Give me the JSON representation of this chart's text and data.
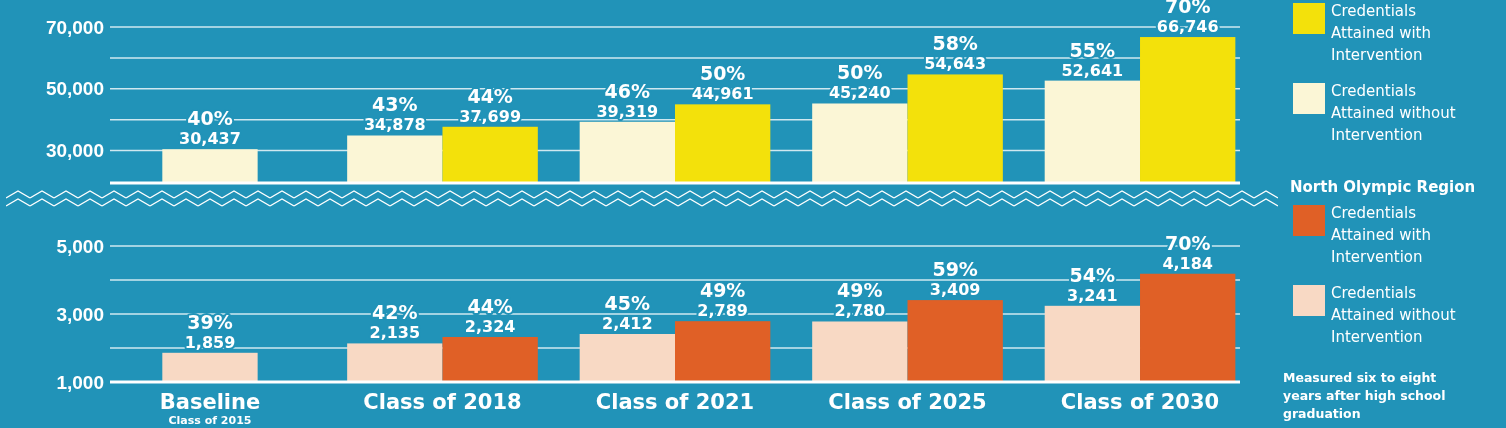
{
  "chart_data": [
    {
      "type": "bar",
      "categories": [
        null,
        null,
        null,
        null,
        null
      ],
      "series": [
        {
          "name": "Credentials Attained without Intervention",
          "color": "#fbf6d6",
          "values": [
            30437,
            34878,
            39319,
            45240,
            52641
          ],
          "value_labels": [
            "40%\n30,437",
            "43%\n34,878",
            "46%\n39,319",
            "50%\n45,240",
            "55%\n52,641"
          ]
        },
        {
          "name": "Credentials Attained with Intervention",
          "color": "#f3e10b",
          "values": [
            null,
            37699,
            44961,
            54643,
            66746
          ],
          "value_labels": [
            null,
            "44%\n37,699",
            "50%\n44,961",
            "58%\n54,643",
            "70%\n66,746"
          ]
        }
      ],
      "ylim": [
        19500,
        70000
      ],
      "yticks": [
        {
          "value": 30000,
          "label": "30,000"
        },
        {
          "value": 40000,
          "label": null
        },
        {
          "value": 50000,
          "label": "50,000"
        },
        {
          "value": 60000,
          "label": null
        },
        {
          "value": 70000,
          "label": "70,000"
        }
      ],
      "grid": "y",
      "legend": "right",
      "tick_labels": "y"
    },
    {
      "type": "bar",
      "categories": [
        "Baseline\n$_{Class of 2015}$",
        "Class of 2018",
        "Class of 2021",
        "Class of 2025",
        "Class of 2030"
      ],
      "legend_title": "North Olympic Region",
      "series": [
        {
          "name": "Credentials Attained without Intervention",
          "color": "#f8d9c4",
          "values": [
            1859,
            2135,
            2412,
            2780,
            3241
          ],
          "value_labels": [
            "39%\n1,859",
            "42%\n2,135",
            "45%\n2,412",
            "49%\n2,780",
            "54%\n3,241"
          ]
        },
        {
          "name": "Credentials Attained with Intervention",
          "color": "#e06026",
          "values": [
            null,
            2324,
            2789,
            3409,
            4184
          ],
          "value_labels": [
            null,
            "44%\n2,324",
            "49%\n2,789",
            "59%\n3,409",
            "70%\n4,184"
          ]
        }
      ],
      "ylim": [
        1000,
        5000
      ],
      "yticks": [
        {
          "value": 1000,
          "label": "1,000"
        },
        {
          "value": 2000,
          "label": null
        },
        {
          "value": 3000,
          "label": "3,000"
        },
        {
          "value": 4000,
          "label": null
        },
        {
          "value": 5000,
          "label": "5,000"
        }
      ],
      "grid": "y",
      "legend": "right",
      "annotations": [
        "Measured six to eight years after high school graduation"
      ]
    }
  ]
}
